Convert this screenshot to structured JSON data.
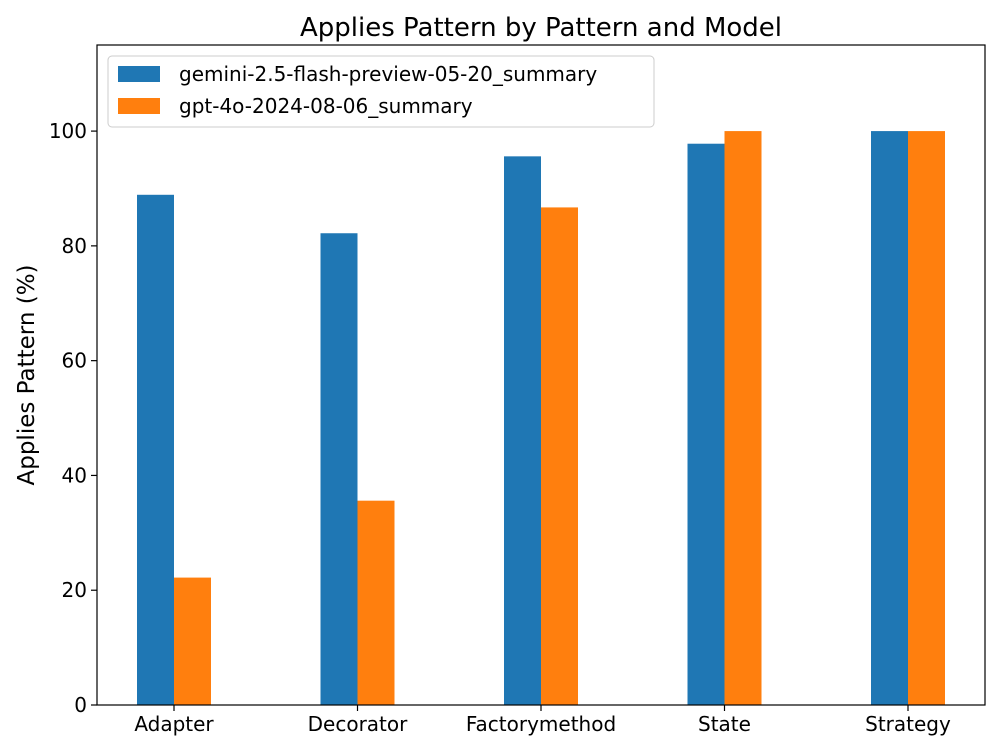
{
  "chart_data": {
    "type": "bar",
    "title": "Applies Pattern by Pattern and Model",
    "xlabel": "",
    "ylabel": "Applies Pattern (%)",
    "categories": [
      "Adapter",
      "Decorator",
      "Factorymethod",
      "State",
      "Strategy"
    ],
    "series": [
      {
        "name": "gemini-2.5-flash-preview-05-20_summary",
        "color": "#1f77b4",
        "values": [
          88.9,
          82.2,
          95.6,
          97.8,
          100
        ]
      },
      {
        "name": "gpt-4o-2024-08-06_summary",
        "color": "#ff7f0e",
        "values": [
          22.2,
          35.6,
          86.7,
          100,
          100
        ]
      }
    ],
    "ylim": [
      0,
      115
    ],
    "yticks": [
      0,
      20,
      40,
      60,
      80,
      100
    ],
    "grid": false,
    "legend_position": "top-left"
  }
}
